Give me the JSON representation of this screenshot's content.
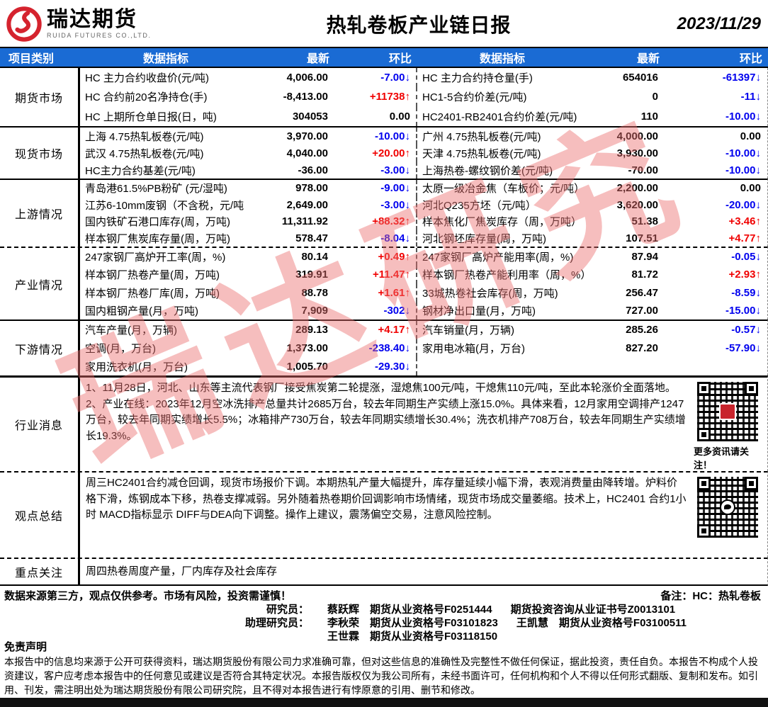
{
  "header": {
    "brand_cn": "瑞达期货",
    "brand_en": "RUIDA FUTURES CO.,LTD.",
    "title": "热轧卷板产业链日报",
    "date": "2023/11/29"
  },
  "table_head": {
    "category": "项目类别",
    "indicator": "数据指标",
    "latest": "最新",
    "chain": "环比"
  },
  "colors": {
    "header_blue": "#1A6BD4",
    "up_red": "#F00000",
    "down_blue": "#0000EE",
    "logo_red": "#D5232E",
    "watermark_pink": "rgba(235,110,110,0.45)"
  },
  "watermark_text": "瑞达研究",
  "market_sections": [
    {
      "key": "futures",
      "name": "期货市场",
      "rows": [
        {
          "left": {
            "label": "HC 主力合约收盘价(元/吨)",
            "value": "4,006.00",
            "change": "-7.00↓",
            "dir": "down"
          },
          "right": {
            "label": "HC 主力合约持仓量(手)",
            "value": "654016",
            "change": "-61397↓",
            "dir": "down"
          }
        },
        {
          "left": {
            "label": "HC 合约前20名净持仓(手)",
            "value": "-8,413.00",
            "change": "+11738↑",
            "dir": "up"
          },
          "right": {
            "label": "HC1-5合约价差(元/吨)",
            "value": "0",
            "change": "-11↓",
            "dir": "down"
          }
        },
        {
          "left": {
            "label": "HC 上期所仓单日报(日，吨)",
            "value": "304053",
            "change": "0.00",
            "dir": "flat"
          },
          "right": {
            "label": "HC2401-RB2401合约价差(元/吨)",
            "value": "110",
            "change": "-10.00↓",
            "dir": "down"
          }
        }
      ]
    },
    {
      "key": "spot",
      "name": "现货市场",
      "rows": [
        {
          "left": {
            "label": "上海 4.75热轧板卷(元/吨)",
            "value": "3,970.00",
            "change": "-10.00↓",
            "dir": "down"
          },
          "right": {
            "label": "广州 4.75热轧板卷(元/吨)",
            "value": "4,000.00",
            "change": "0.00",
            "dir": "flat"
          }
        },
        {
          "left": {
            "label": "武汉 4.75热轧板卷(元/吨)",
            "value": "4,040.00",
            "change": "+20.00↑",
            "dir": "up"
          },
          "right": {
            "label": "天津 4.75热轧板卷(元/吨)",
            "value": "3,930.00",
            "change": "-10.00↓",
            "dir": "down"
          }
        },
        {
          "left": {
            "label": "HC主力合约基差(元/吨)",
            "value": "-36.00",
            "change": "-3.00↓",
            "dir": "down"
          },
          "right": {
            "label": "上海热卷-螺纹钢价差(元/吨)",
            "value": "-70.00",
            "change": "-10.00↓",
            "dir": "down"
          }
        }
      ]
    },
    {
      "key": "upstream",
      "name": "上游情况",
      "rows": [
        {
          "left": {
            "label": "青岛港61.5%PB粉矿 (元/湿吨)",
            "value": "978.00",
            "change": "-9.00↓",
            "dir": "down"
          },
          "right": {
            "label": "太原一级冶金焦（车板价；元/吨）",
            "value": "2,200.00",
            "change": "0.00",
            "dir": "flat"
          }
        },
        {
          "left": {
            "label": "江苏6-10mm废钢（不含税，元/吨",
            "value": "2,649.00",
            "change": "-3.00↓",
            "dir": "down"
          },
          "right": {
            "label": "河北Q235方坯（元/吨）",
            "value": "3,620.00",
            "change": "-20.00↓",
            "dir": "down"
          }
        },
        {
          "left": {
            "label": "国内铁矿石港口库存(周，万吨)",
            "value": "11,311.92",
            "change": "+88.32↑",
            "dir": "up"
          },
          "right": {
            "label": "样本焦化厂焦炭库存（周，万吨）",
            "value": "51.38",
            "change": "+3.46↑",
            "dir": "up"
          }
        },
        {
          "left": {
            "label": "样本钢厂焦炭库存量(周，万吨)",
            "value": "578.47",
            "change": "-8.04↓",
            "dir": "down"
          },
          "right": {
            "label": "河北钢坯库存量(周，万吨)",
            "value": "107.51",
            "change": "+4.77↑",
            "dir": "up"
          }
        }
      ]
    },
    {
      "key": "industry",
      "name": "产业情况",
      "rows": [
        {
          "left": {
            "label": "247家钢厂高炉开工率(周，%)",
            "value": "80.14",
            "change": "+0.49↑",
            "dir": "up"
          },
          "right": {
            "label": "247家钢厂高炉产能用率(周，%)",
            "value": "87.94",
            "change": "-0.05↓",
            "dir": "down"
          }
        },
        {
          "left": {
            "label": "样本钢厂热卷产量(周，万吨)",
            "value": "319.91",
            "change": "+11.47↑",
            "dir": "up"
          },
          "right": {
            "label": "样本钢厂热卷产能利用率（周，%）",
            "value": "81.72",
            "change": "+2.93↑",
            "dir": "up"
          }
        },
        {
          "left": {
            "label": "样本钢厂热卷厂库(周，万吨)",
            "value": "88.78",
            "change": "+1.61↑",
            "dir": "up"
          },
          "right": {
            "label": "33城热卷社会库存(周，万吨)",
            "value": "256.47",
            "change": "-8.59↓",
            "dir": "down"
          }
        },
        {
          "left": {
            "label": "国内粗钢产量(月，万吨)",
            "value": "7,909",
            "change": "-302↓",
            "dir": "down"
          },
          "right": {
            "label": "钢材净出口量(月，万吨)",
            "value": "727.00",
            "change": "-15.00↓",
            "dir": "down"
          }
        }
      ]
    },
    {
      "key": "downstream",
      "name": "下游情况",
      "rows": [
        {
          "left": {
            "label": "汽车产量(月，万辆)",
            "value": "289.13",
            "change": "+4.17↑",
            "dir": "up"
          },
          "right": {
            "label": "汽车销量(月，万辆)",
            "value": "285.26",
            "change": "-0.57↓",
            "dir": "down"
          }
        },
        {
          "left": {
            "label": "空调(月，万台)",
            "value": "1,373.00",
            "change": "-238.40↓",
            "dir": "down"
          },
          "right": {
            "label": "家用电冰箱(月，万台)",
            "value": "827.20",
            "change": "-57.90↓",
            "dir": "down"
          }
        },
        {
          "left": {
            "label": "家用洗衣机(月，万台)",
            "value": "1,005.70",
            "change": "-29.30↓",
            "dir": "down"
          },
          "right": {
            "label": "",
            "value": "",
            "change": "",
            "dir": "flat"
          }
        }
      ]
    }
  ],
  "news": {
    "label": "行业消息",
    "lines": [
      "1、11月28日，河北、山东等主流代表钢厂接受焦炭第二轮提涨，湿熄焦100元/吨，干熄焦110元/吨，至此本轮涨价全面落地。",
      "2、产业在线：2023年12月空冰洗排产总量共计2685万台，较去年同期生产实绩上涨15.0%。具体来看，12月家用空调排产1247万台，较去年同期实绩增长5.5%；冰箱排产730万台，较去年同期实绩增长30.4%；洗衣机排产708万台，较去年同期生产实绩增长19.3%。"
    ],
    "qr_caption": "更多资讯请关注！"
  },
  "summary": {
    "label": "观点总结",
    "text": "周三HC2401合约减仓回调，现货市场报价下调。本期热轧产量大幅提升，库存量延续小幅下滑，表观消费量由降转增。炉料价格下滑，炼钢成本下移，热卷支撑减弱。另外随着热卷期价回调影响市场情绪，现货市场成交量萎缩。技术上，HC2401 合约1小时 MACD指标显示 DIFF与DEA向下调整。操作上建议，震荡偏空交易，注意风险控制。"
  },
  "focus": {
    "label": "重点关注",
    "text": "周四热卷周度产量，厂内库存及社会库存"
  },
  "footer": {
    "source_note": "数据来源第三方，观点仅供参考。市场有风险，投资需谨慎！",
    "remark": "备注：HC：热轧卷板",
    "credits": [
      {
        "role": "研究员：",
        "items": [
          "蔡跃辉　期货从业资格号F0251444",
          "期货投资咨询从业证书号Z0013101"
        ]
      },
      {
        "role": "助理研究员：",
        "items": [
          "李秋荣　期货从业资格号F03101823",
          "王凯慧　期货从业资格号F03100511"
        ]
      },
      {
        "role": "",
        "items": [
          "王世霖　期货从业资格号F03118150"
        ]
      }
    ],
    "disclaimer_title": "免责声明",
    "disclaimer_body": "本报告中的信息均来源于公开可获得资料，瑞达期货股份有限公司力求准确可靠，但对这些信息的准确性及完整性不做任何保证，据此投资，责任自负。本报告不构成个人投资建议，客户应考虑本报告中的任何意见或建议是否符合其特定状况。本报告版权仅为我公司所有，未经书面许可，任何机构和个人不得以任何形式翻版、复制和发布。如引用、刊发，需注明出处为瑞达期货股份有限公司研究院，且不得对本报告进行有悖原意的引用、删节和修改。"
  }
}
